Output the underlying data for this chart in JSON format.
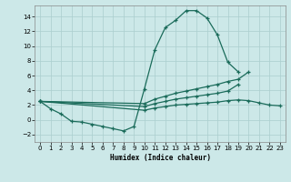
{
  "xlabel": "Humidex (Indice chaleur)",
  "x_values": [
    0,
    1,
    2,
    3,
    4,
    5,
    6,
    7,
    8,
    9,
    10,
    11,
    12,
    13,
    14,
    15,
    16,
    17,
    18,
    19,
    20,
    21,
    22,
    23
  ],
  "line1_y": [
    2.5,
    1.5,
    0.8,
    -0.2,
    -0.3,
    -0.6,
    -0.9,
    -1.2,
    -1.5,
    -0.9,
    4.2,
    9.5,
    12.5,
    13.5,
    14.8,
    14.8,
    13.8,
    11.5,
    7.8,
    6.5,
    null,
    null,
    null,
    null
  ],
  "line2_y": [
    2.5,
    null,
    null,
    null,
    null,
    null,
    null,
    null,
    null,
    null,
    2.2,
    2.8,
    3.2,
    3.6,
    3.9,
    4.2,
    4.5,
    4.8,
    5.2,
    5.5,
    6.5,
    null,
    null,
    null
  ],
  "line3_y": [
    2.5,
    null,
    null,
    null,
    null,
    null,
    null,
    null,
    null,
    null,
    1.8,
    2.2,
    2.5,
    2.8,
    3.0,
    3.2,
    3.4,
    3.6,
    3.9,
    4.8,
    null,
    null,
    null,
    null
  ],
  "line4_y": [
    2.5,
    null,
    null,
    null,
    null,
    null,
    null,
    null,
    null,
    null,
    1.3,
    1.6,
    1.8,
    2.0,
    2.1,
    2.2,
    2.3,
    2.4,
    2.6,
    2.7,
    2.6,
    2.3,
    2.0,
    1.9
  ],
  "line_color": "#1a6b5a",
  "bg_color": "#cce8e8",
  "grid_color": "#aacece",
  "ylim": [
    -3,
    15.5
  ],
  "xlim": [
    -0.5,
    23.5
  ],
  "yticks": [
    -2,
    0,
    2,
    4,
    6,
    8,
    10,
    12,
    14
  ],
  "xticks": [
    0,
    1,
    2,
    3,
    4,
    5,
    6,
    7,
    8,
    9,
    10,
    11,
    12,
    13,
    14,
    15,
    16,
    17,
    18,
    19,
    20,
    21,
    22,
    23
  ]
}
